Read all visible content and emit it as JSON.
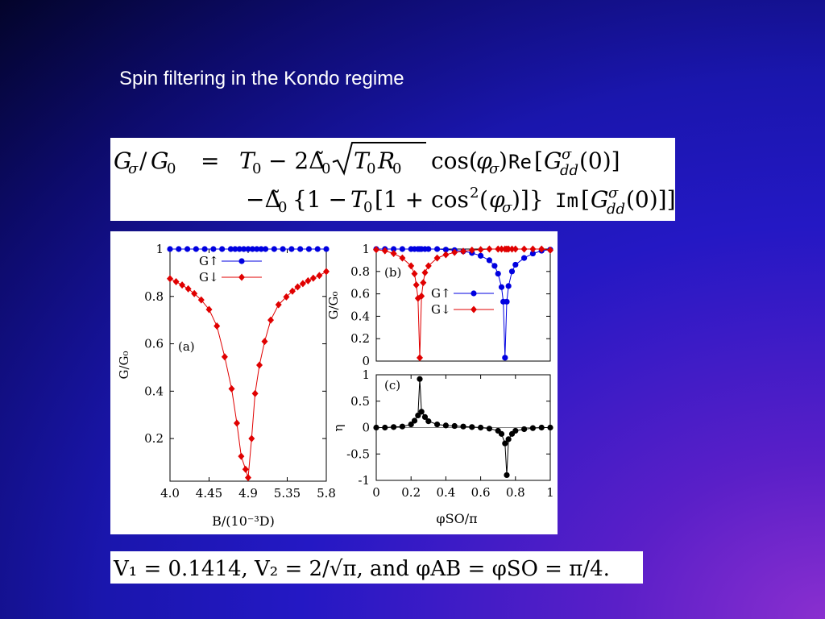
{
  "slide": {
    "title": "Spin filtering in the Kondo regime"
  },
  "formula": {
    "line1_lhs": "G",
    "line1_rhs": "= T₀ − 2Δ̃₀√(T₀R₀) cos(φσ)Re[G",
    "line2": "−Δ̃₀ {1 − T₀[1 + cos²(φσ)]} Im[G"
  },
  "params": {
    "text": "V₁ = 0.1414, V₂ = 2/√π, and φAB = φSO = π/4."
  },
  "chart_data": [
    {
      "type": "line",
      "panel_label": "(a)",
      "xlabel": "B/(10⁻³D)",
      "ylabel": "G/G₀",
      "xlim": [
        4.0,
        5.8
      ],
      "ylim": [
        0.02,
        1.0
      ],
      "xticks": [
        "4.0",
        "4.45",
        "4.9",
        "5.35",
        "5.8"
      ],
      "yticks": [
        "0.2",
        "0.4",
        "0.6",
        "0.8",
        "1"
      ],
      "legend": [
        "G↑",
        "G↓"
      ],
      "legend_position": "top-center",
      "series": [
        {
          "name": "G↑",
          "color": "#0000e0",
          "marker": "circle",
          "x": [
            4.0,
            4.1,
            4.2,
            4.3,
            4.4,
            4.5,
            4.6,
            4.7,
            4.75,
            4.8,
            4.85,
            4.9,
            4.95,
            5.0,
            5.05,
            5.1,
            5.2,
            5.3,
            5.4,
            5.5,
            5.6,
            5.7,
            5.8
          ],
          "values": [
            1,
            1,
            1,
            1,
            1,
            1,
            1,
            1,
            1,
            1,
            1,
            1,
            1,
            1,
            1,
            1,
            1,
            1,
            1,
            1,
            1,
            1,
            1
          ]
        },
        {
          "name": "G↓",
          "color": "#e00000",
          "marker": "diamond",
          "x": [
            4.0,
            4.07,
            4.14,
            4.21,
            4.28,
            4.36,
            4.45,
            4.54,
            4.63,
            4.71,
            4.77,
            4.82,
            4.87,
            4.9,
            4.94,
            4.98,
            5.03,
            5.09,
            5.16,
            5.25,
            5.34,
            5.41,
            5.47,
            5.53,
            5.59,
            5.65,
            5.72,
            5.8
          ],
          "values": [
            0.875,
            0.862,
            0.848,
            0.832,
            0.812,
            0.785,
            0.745,
            0.675,
            0.545,
            0.41,
            0.265,
            0.125,
            0.07,
            0.035,
            0.2,
            0.39,
            0.51,
            0.61,
            0.7,
            0.765,
            0.798,
            0.822,
            0.84,
            0.854,
            0.866,
            0.877,
            0.888,
            0.905
          ]
        }
      ]
    },
    {
      "type": "line",
      "panel_label": "(b)",
      "xlabel": "",
      "ylabel": "G/G₀",
      "xlim": [
        0,
        1
      ],
      "ylim": [
        0,
        1
      ],
      "yticks": [
        "0",
        "0.2",
        "0.4",
        "0.6",
        "0.8",
        "1"
      ],
      "legend": [
        "G↑",
        "G↓"
      ],
      "legend_position": "center",
      "series": [
        {
          "name": "G↑",
          "color": "#0000e0",
          "marker": "circle",
          "x": [
            0,
            0.05,
            0.1,
            0.15,
            0.2,
            0.22,
            0.24,
            0.25,
            0.26,
            0.28,
            0.3,
            0.35,
            0.4,
            0.45,
            0.5,
            0.55,
            0.6,
            0.65,
            0.68,
            0.7,
            0.72,
            0.73,
            0.74,
            0.75,
            0.76,
            0.78,
            0.8,
            0.85,
            0.9,
            0.95,
            1.0
          ],
          "values": [
            1,
            1,
            1,
            1,
            1,
            1,
            1,
            1,
            1,
            1,
            1,
            1,
            0.995,
            0.99,
            0.98,
            0.965,
            0.94,
            0.9,
            0.85,
            0.78,
            0.66,
            0.53,
            0.03,
            0.53,
            0.67,
            0.8,
            0.86,
            0.92,
            0.96,
            0.985,
            0.995
          ]
        },
        {
          "name": "G↓",
          "color": "#e00000",
          "marker": "diamond",
          "x": [
            0,
            0.05,
            0.1,
            0.15,
            0.2,
            0.22,
            0.23,
            0.24,
            0.25,
            0.26,
            0.27,
            0.28,
            0.3,
            0.35,
            0.4,
            0.45,
            0.5,
            0.55,
            0.6,
            0.65,
            0.7,
            0.72,
            0.74,
            0.75,
            0.76,
            0.78,
            0.8,
            0.85,
            0.9,
            0.95,
            1.0
          ],
          "values": [
            0.995,
            0.985,
            0.96,
            0.92,
            0.85,
            0.78,
            0.68,
            0.56,
            0.03,
            0.58,
            0.7,
            0.79,
            0.85,
            0.92,
            0.95,
            0.97,
            0.98,
            0.99,
            0.995,
            1,
            1,
            1,
            1,
            1,
            1,
            1,
            1,
            1,
            1,
            1,
            0.99
          ]
        }
      ]
    },
    {
      "type": "line",
      "panel_label": "(c)",
      "xlabel": "φSO/π",
      "ylabel": "η",
      "xlim": [
        0,
        1
      ],
      "ylim": [
        -1,
        1
      ],
      "xticks": [
        "0",
        "0.2",
        "0.4",
        "0.6",
        "0.8",
        "1"
      ],
      "yticks": [
        "-1",
        "-0.5",
        "0",
        "0.5",
        "1"
      ],
      "series": [
        {
          "name": "",
          "color": "#000000",
          "marker": "circle",
          "x": [
            0,
            0.05,
            0.1,
            0.15,
            0.2,
            0.22,
            0.24,
            0.25,
            0.26,
            0.28,
            0.3,
            0.35,
            0.4,
            0.45,
            0.5,
            0.55,
            0.6,
            0.65,
            0.7,
            0.72,
            0.74,
            0.75,
            0.76,
            0.78,
            0.8,
            0.85,
            0.9,
            0.95,
            1.0
          ],
          "values": [
            0,
            0,
            0.01,
            0.02,
            0.06,
            0.13,
            0.23,
            0.92,
            0.3,
            0.2,
            0.12,
            0.06,
            0.04,
            0.03,
            0.02,
            0.01,
            0,
            -0.02,
            -0.06,
            -0.12,
            -0.3,
            -0.9,
            -0.22,
            -0.12,
            -0.06,
            -0.03,
            -0.01,
            0,
            0
          ]
        }
      ]
    }
  ]
}
